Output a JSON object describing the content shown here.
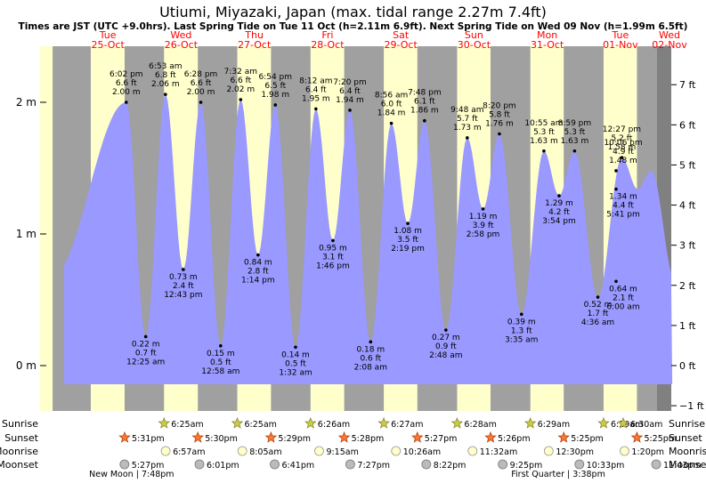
{
  "title": "Utiumi, Miyazaki, Japan (max. tidal range 2.27m 7.4ft)",
  "subtitle": "Times are JST (UTC +9.0hrs). Last Spring Tide on Tue 11 Oct (h=2.11m 6.9ft). Next Spring Tide on Wed 09 Nov (h=1.99m 6.5ft)",
  "colors": {
    "day": "#ffffcc",
    "night": "#a0a0a0",
    "water": "#9999ff",
    "date_text": "#ff0000",
    "text": "#000000"
  },
  "chart_data": {
    "type": "area",
    "title": "Utiumi, Miyazaki, Japan (max. tidal range 2.27m 7.4ft)",
    "x_unit": "hours from 00:00 Tue 25-Oct (JST)",
    "x_range": [
      0,
      192
    ],
    "y_unit": "m",
    "y_range": [
      -0.33,
      2.43
    ],
    "day_headers": [
      {
        "day": "Tue",
        "date": "25-Oct",
        "hour": 0
      },
      {
        "day": "Wed",
        "date": "26-Oct",
        "hour": 24
      },
      {
        "day": "Thu",
        "date": "27-Oct",
        "hour": 48
      },
      {
        "day": "Fri",
        "date": "28-Oct",
        "hour": 72
      },
      {
        "day": "Sat",
        "date": "29-Oct",
        "hour": 96
      },
      {
        "day": "Sun",
        "date": "30-Oct",
        "hour": 120
      },
      {
        "day": "Mon",
        "date": "31-Oct",
        "hour": 144
      },
      {
        "day": "Tue",
        "date": "01-Nov",
        "hour": 168
      },
      {
        "day": "Wed",
        "date": "02-Nov",
        "hour": 192
      }
    ],
    "left_axis": [
      {
        "label": "0 m",
        "value": 0
      },
      {
        "label": "1 m",
        "value": 1
      },
      {
        "label": "2 m",
        "value": 2
      }
    ],
    "right_axis": [
      {
        "label": "−1 ft",
        "value": -1
      },
      {
        "label": "0 ft",
        "value": 0
      },
      {
        "label": "1 ft",
        "value": 1
      },
      {
        "label": "2 ft",
        "value": 2
      },
      {
        "label": "3 ft",
        "value": 3
      },
      {
        "label": "4 ft",
        "value": 4
      },
      {
        "label": "5 ft",
        "value": 5
      },
      {
        "label": "6 ft",
        "value": 6
      },
      {
        "label": "7 ft",
        "value": 7
      }
    ],
    "night_periods": [
      [
        -6.1,
        6.42
      ],
      [
        17.5,
        30.42
      ],
      [
        41.5,
        54.42
      ],
      [
        65.48,
        78.43
      ],
      [
        89.47,
        102.45
      ],
      [
        113.45,
        126.47
      ],
      [
        137.43,
        150.48
      ],
      [
        161.42,
        174.48
      ],
      [
        185.42,
        198.5
      ]
    ],
    "tides": [
      {
        "type": "high",
        "time": "6:02 pm",
        "ft": "6.6 ft",
        "m": "2.00 m",
        "hour": 18.03,
        "height": 2.0
      },
      {
        "type": "low",
        "time": "12:25 am",
        "ft": "0.7 ft",
        "m": "0.22 m",
        "hour": 24.42,
        "height": 0.22
      },
      {
        "type": "high",
        "time": "6:53 am",
        "ft": "6.8 ft",
        "m": "2.06 m",
        "hour": 30.88,
        "height": 2.06
      },
      {
        "type": "low",
        "time": "12:43 pm",
        "ft": "2.4 ft",
        "m": "0.73 m",
        "hour": 36.72,
        "height": 0.73
      },
      {
        "type": "high",
        "time": "6:28 pm",
        "ft": "6.6 ft",
        "m": "2.00 m",
        "hour": 42.47,
        "height": 2.0
      },
      {
        "type": "low",
        "time": "12:58 am",
        "ft": "0.5 ft",
        "m": "0.15 m",
        "hour": 48.97,
        "height": 0.15
      },
      {
        "type": "high",
        "time": "7:32 am",
        "ft": "6.6 ft",
        "m": "2.02 m",
        "hour": 55.53,
        "height": 2.02
      },
      {
        "type": "low",
        "time": "1:14 pm",
        "ft": "2.8 ft",
        "m": "0.84 m",
        "hour": 61.23,
        "height": 0.84
      },
      {
        "type": "high",
        "time": "6:54 pm",
        "ft": "6.5 ft",
        "m": "1.98 m",
        "hour": 66.9,
        "height": 1.98
      },
      {
        "type": "low",
        "time": "1:32 am",
        "ft": "0.5 ft",
        "m": "0.14 m",
        "hour": 73.53,
        "height": 0.14
      },
      {
        "type": "high",
        "time": "8:12 am",
        "ft": "6.4 ft",
        "m": "1.95 m",
        "hour": 80.2,
        "height": 1.95
      },
      {
        "type": "low",
        "time": "1:46 pm",
        "ft": "3.1 ft",
        "m": "0.95 m",
        "hour": 85.77,
        "height": 0.95
      },
      {
        "type": "high",
        "time": "7:20 pm",
        "ft": "6.4 ft",
        "m": "1.94 m",
        "hour": 91.33,
        "height": 1.94
      },
      {
        "type": "low",
        "time": "2:08 am",
        "ft": "0.6 ft",
        "m": "0.18 m",
        "hour": 98.13,
        "height": 0.18
      },
      {
        "type": "high",
        "time": "8:56 am",
        "ft": "6.0 ft",
        "m": "1.84 m",
        "hour": 104.93,
        "height": 1.84
      },
      {
        "type": "low",
        "time": "2:19 pm",
        "ft": "3.5 ft",
        "m": "1.08 m",
        "hour": 110.32,
        "height": 1.08
      },
      {
        "type": "high",
        "time": "7:48 pm",
        "ft": "6.1 ft",
        "m": "1.86 m",
        "hour": 115.8,
        "height": 1.86
      },
      {
        "type": "low",
        "time": "2:48 am",
        "ft": "0.9 ft",
        "m": "0.27 m",
        "hour": 122.8,
        "height": 0.27
      },
      {
        "type": "high",
        "time": "9:48 am",
        "ft": "5.7 ft",
        "m": "1.73 m",
        "hour": 129.8,
        "height": 1.73
      },
      {
        "type": "low",
        "time": "2:58 pm",
        "ft": "3.9 ft",
        "m": "1.19 m",
        "hour": 134.97,
        "height": 1.19
      },
      {
        "type": "high",
        "time": "8:20 pm",
        "ft": "5.8 ft",
        "m": "1.76 m",
        "hour": 140.33,
        "height": 1.76
      },
      {
        "type": "low",
        "time": "3:35 am",
        "ft": "1.3 ft",
        "m": "0.39 m",
        "hour": 147.58,
        "height": 0.39
      },
      {
        "type": "high",
        "time": "10:55 am",
        "ft": "5.3 ft",
        "m": "1.63 m",
        "hour": 154.92,
        "height": 1.63
      },
      {
        "type": "low",
        "time": "3:54 pm",
        "ft": "4.2 ft",
        "m": "1.29 m",
        "hour": 159.9,
        "height": 1.29
      },
      {
        "type": "high",
        "time": "8:59 pm",
        "ft": "5.3 ft",
        "m": "1.63 m",
        "hour": 164.98,
        "height": 1.63
      },
      {
        "type": "low",
        "time": "4:36 am",
        "ft": "1.7 ft",
        "m": "0.52 m",
        "hour": 172.6,
        "height": 0.52
      },
      {
        "type": "high",
        "time": "12:27 pm",
        "ft": "5.2 ft",
        "m": "1.58 m",
        "hour": 180.45,
        "height": 1.58
      },
      {
        "type": "low",
        "time": "5:41 pm",
        "ft": "4.4 ft",
        "m": "1.34 m",
        "hour": 185.68,
        "height": 1.34
      },
      {
        "type": "high",
        "time": "10:06 pm",
        "ft": "4.9 ft",
        "m": "1.48 m",
        "hour": 190.1,
        "height": 1.48
      },
      {
        "type": "low",
        "time": "6:00 am",
        "ft": "2.1 ft",
        "m": "0.64 m",
        "hour": 198.0,
        "height": 0.64
      }
    ],
    "sun_moon_labels": [
      "Sunrise",
      "Sunset",
      "Moonrise",
      "Moonset"
    ],
    "sunrise": [
      {
        "time": "6:25am",
        "hour": 30.42
      },
      {
        "time": "6:25am",
        "hour": 54.42
      },
      {
        "time": "6:26am",
        "hour": 78.43
      },
      {
        "time": "6:27am",
        "hour": 102.45
      },
      {
        "time": "6:28am",
        "hour": 126.47
      },
      {
        "time": "6:29am",
        "hour": 150.48
      },
      {
        "time": "6:29am",
        "hour": 174.48
      },
      {
        "time": "6:30am",
        "hour": 198.5
      }
    ],
    "sunset": [
      {
        "time": "5:31pm",
        "hour": 17.52
      },
      {
        "time": "5:30pm",
        "hour": 41.5
      },
      {
        "time": "5:29pm",
        "hour": 65.48
      },
      {
        "time": "5:28pm",
        "hour": 89.47
      },
      {
        "time": "5:27pm",
        "hour": 113.45
      },
      {
        "time": "5:26pm",
        "hour": 137.43
      },
      {
        "time": "5:25pm",
        "hour": 161.42
      },
      {
        "time": "5:25pm",
        "hour": 185.42
      }
    ],
    "moonrise": [
      {
        "time": "6:57am",
        "hour": 30.95
      },
      {
        "time": "8:05am",
        "hour": 56.08
      },
      {
        "time": "9:15am",
        "hour": 81.25
      },
      {
        "time": "10:26am",
        "hour": 106.43
      },
      {
        "time": "11:32am",
        "hour": 131.53
      },
      {
        "time": "12:30pm",
        "hour": 156.5
      },
      {
        "time": "1:20pm",
        "hour": 181.33
      }
    ],
    "moonset": [
      {
        "time": "5:27pm",
        "hour": 17.45
      },
      {
        "time": "6:01pm",
        "hour": 42.02
      },
      {
        "time": "6:41pm",
        "hour": 66.68
      },
      {
        "time": "7:27pm",
        "hour": 91.45
      },
      {
        "time": "8:22pm",
        "hour": 116.37
      },
      {
        "time": "9:25pm",
        "hour": 141.42
      },
      {
        "time": "10:33pm",
        "hour": 166.55
      },
      {
        "time": "11:43pm",
        "hour": 191.72
      }
    ],
    "moon_phases": [
      {
        "label": "New Moon | 7:48pm",
        "hour": 19.8
      },
      {
        "label": "First Quarter | 3:38pm",
        "hour": 159.63
      }
    ]
  }
}
